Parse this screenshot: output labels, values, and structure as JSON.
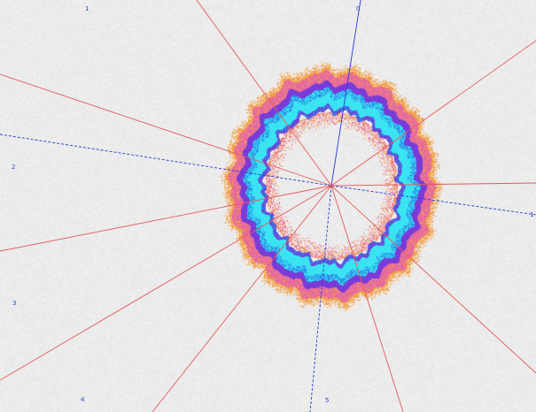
{
  "sector_labels": [
    "1",
    "0",
    "2",
    "3",
    "4",
    "5",
    "1"
  ],
  "colors": {
    "background": "#ececec",
    "radial_line": "#e65a5a",
    "axis_line": "#2838d8",
    "label": "#2b3fd6",
    "ring_outer": "#f3a14a",
    "ring_pink": "#e66aa0",
    "ring_purple": "#7a3bd8",
    "ring_blue": "#2c8ae8",
    "ring_cyan": "#3be4f2",
    "ring_inner": "#f5a060"
  }
}
